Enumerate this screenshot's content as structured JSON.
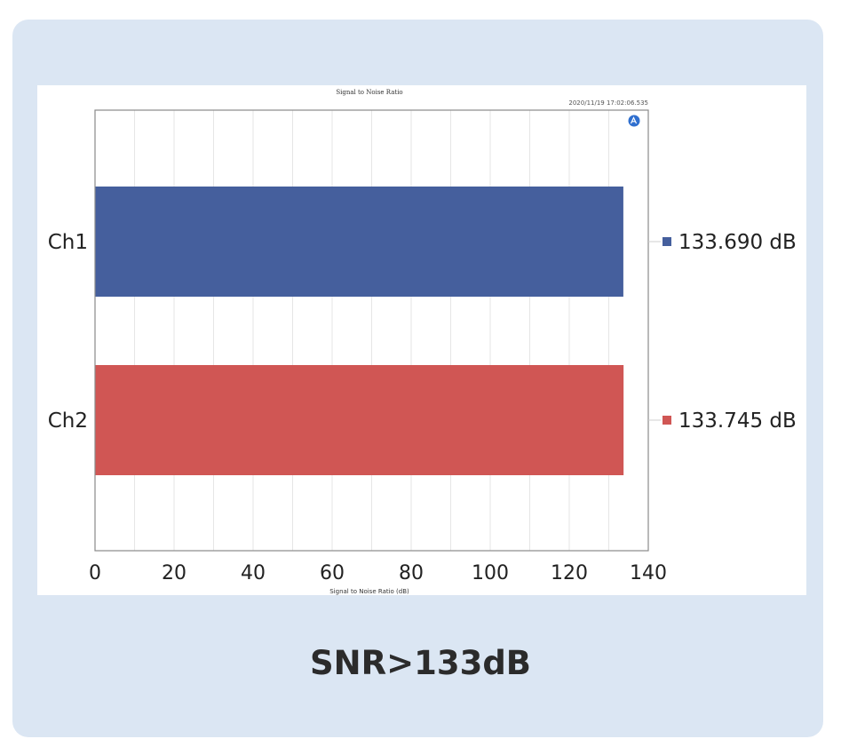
{
  "chart_data": {
    "type": "bar",
    "orientation": "horizontal",
    "title": "Signal to Noise Ratio",
    "timestamp": "2020/11/19 17:02:06.535",
    "xlabel": "Signal to Noise Ratio (dB)",
    "ylabel": "",
    "xlim": [
      0,
      140
    ],
    "xticks": [
      0,
      20,
      40,
      60,
      80,
      100,
      120,
      140
    ],
    "grid": true,
    "legend_position": "right",
    "categories": [
      "Ch1",
      "Ch2"
    ],
    "values": [
      133.69,
      133.745
    ],
    "value_labels": [
      "133.690 dB",
      "133.745 dB"
    ],
    "colors": [
      "#455f9d",
      "#d05654"
    ],
    "logo_icon": "ap-logo-icon"
  },
  "caption": "SNR>133dB",
  "theme": {
    "card_background": "#dbe6f3",
    "grid_color": "#e6e6e6",
    "axis_color": "#8a8a8a"
  }
}
